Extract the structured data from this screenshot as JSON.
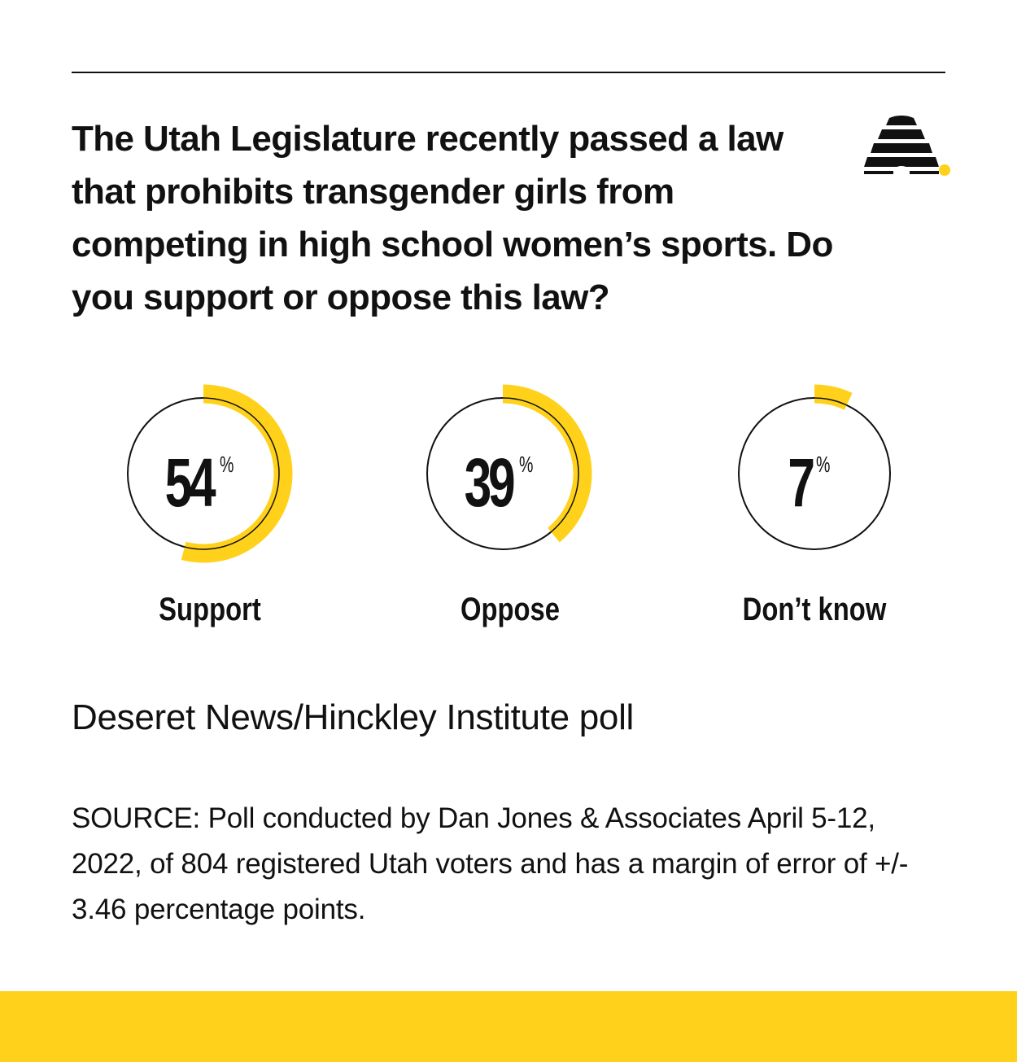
{
  "question": "The Utah Legislature recently passed a law that prohibits transgender girls from competing in high school women’s sports. Do you support or oppose this law?",
  "logo": {
    "icon": "beehive-icon"
  },
  "poll_name": "Deseret News/Hinckley Institute poll",
  "source": "SOURCE: Poll conducted by Dan Jones & Associates April 5-12, 2022, of 804 registered Utah voters and has a margin of error of +/- 3.46 percentage points.",
  "colors": {
    "accent": "#FFD11A",
    "text": "#111111",
    "background": "#FFFFFF"
  },
  "chart_data": {
    "type": "donut",
    "unit": "%",
    "categories": [
      "Support",
      "Oppose",
      "Don’t know"
    ],
    "values": [
      54,
      39,
      7
    ]
  }
}
